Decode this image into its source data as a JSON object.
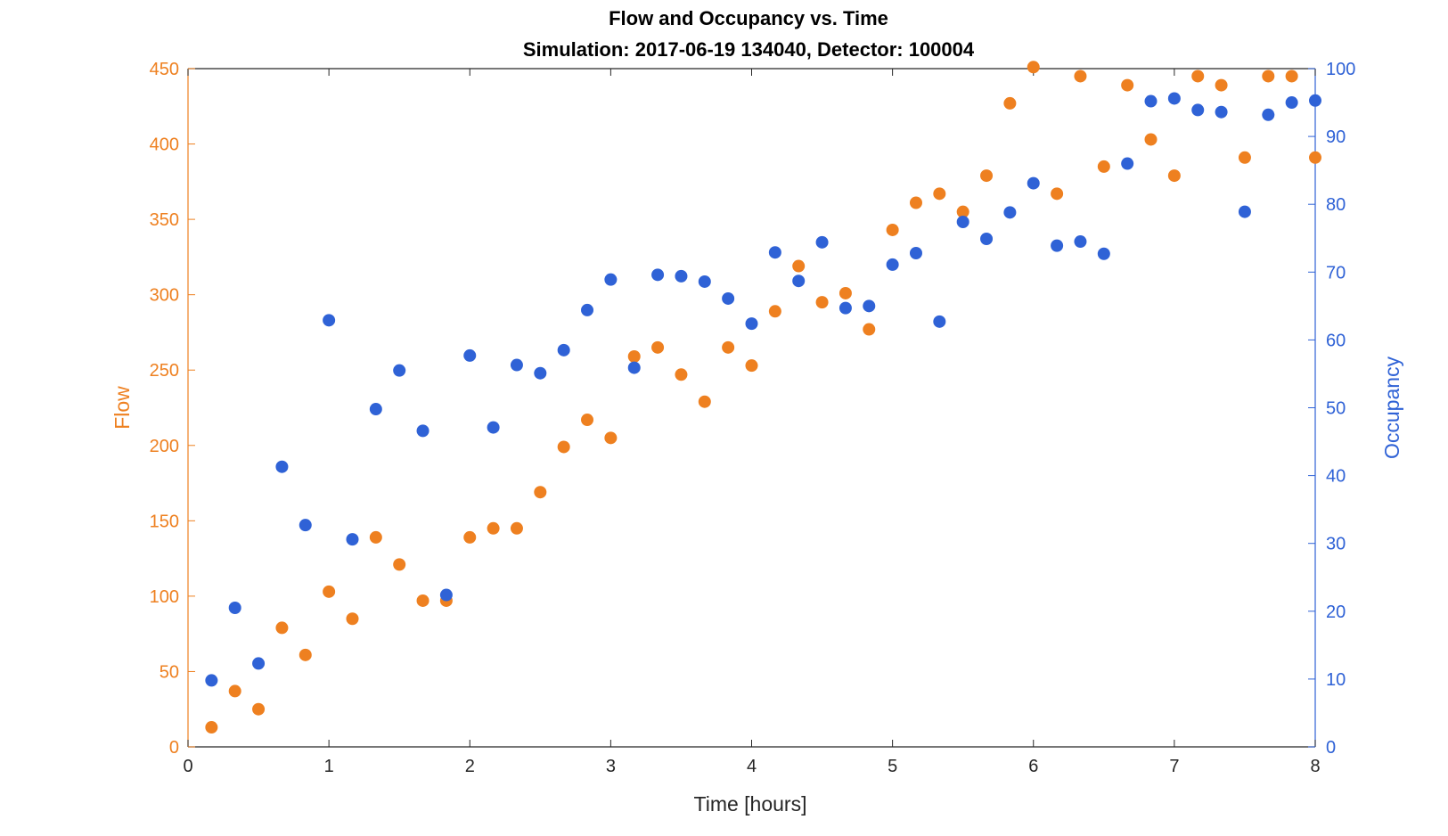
{
  "chart_data": {
    "type": "scatter",
    "title": "Flow and Occupancy vs. Time",
    "subtitle": "Simulation:  2017-06-19 134040,  Detector:  100004",
    "xlabel": "Time [hours]",
    "ylabel_left": "Flow",
    "ylabel_right": "Occupancy",
    "xlim": [
      0,
      8
    ],
    "ylim_left": [
      0,
      450
    ],
    "ylim_right": [
      0,
      100
    ],
    "x_ticks": [
      "0",
      "1",
      "2",
      "3",
      "4",
      "5",
      "6",
      "7",
      "8"
    ],
    "y_ticks_left": [
      "0",
      "50",
      "100",
      "150",
      "200",
      "250",
      "300",
      "350",
      "400",
      "450"
    ],
    "y_ticks_right": [
      "0",
      "10",
      "20",
      "30",
      "40",
      "50",
      "60",
      "70",
      "80",
      "90",
      "100"
    ],
    "grid": false,
    "colors": {
      "flow": "#ee8020",
      "occupancy": "#2f62d6",
      "axis": "#262626"
    },
    "series": [
      {
        "axis": "left",
        "x": [
          0.1667,
          0.3333,
          0.5,
          0.6667,
          0.8333,
          1.0,
          1.1667,
          1.3333,
          1.5,
          1.6667,
          1.8333,
          2.0,
          2.1667,
          2.3333,
          2.5,
          2.6667,
          2.8333,
          3.0,
          3.1667,
          3.3333,
          3.5,
          3.6667,
          3.8333,
          4.0,
          4.1667,
          4.3333,
          4.5,
          4.6667,
          4.8333,
          5.0,
          5.1667,
          5.3333,
          5.5,
          5.6667,
          5.8333,
          6.0,
          6.1667,
          6.3333,
          6.5,
          6.6667,
          6.8333,
          7.0,
          7.1667,
          7.3333,
          7.5,
          7.6667,
          7.8333,
          8.0
        ],
        "y": [
          13,
          37,
          25,
          79,
          61,
          103,
          85,
          139,
          121,
          97,
          97,
          139,
          145,
          145,
          169,
          199,
          217,
          205,
          259,
          265,
          247,
          229,
          265,
          253,
          289,
          319,
          295,
          301,
          277,
          343,
          361,
          367,
          355,
          379,
          427,
          451,
          367,
          445,
          385,
          439,
          403,
          379,
          445,
          439,
          391,
          445,
          445,
          391
        ]
      },
      {
        "axis": "right",
        "x": [
          0.1667,
          0.3333,
          0.5,
          0.6667,
          0.8333,
          1.0,
          1.1667,
          1.3333,
          1.5,
          1.6667,
          1.8333,
          2.0,
          2.1667,
          2.3333,
          2.5,
          2.6667,
          2.8333,
          3.0,
          3.1667,
          3.3333,
          3.5,
          3.6667,
          3.8333,
          4.0,
          4.1667,
          4.3333,
          4.5,
          4.6667,
          4.8333,
          5.0,
          5.1667,
          5.3333,
          5.5,
          5.6667,
          5.8333,
          6.0,
          6.1667,
          6.3333,
          6.5,
          6.6667,
          6.8333,
          7.0,
          7.1667,
          7.3333,
          7.5,
          7.6667,
          7.8333,
          8.0
        ],
        "y": [
          9.8,
          20.5,
          12.3,
          41.3,
          32.7,
          62.9,
          30.6,
          49.8,
          55.5,
          46.6,
          22.4,
          57.7,
          47.1,
          56.3,
          55.1,
          58.5,
          64.4,
          68.9,
          55.9,
          69.6,
          69.4,
          68.6,
          66.1,
          62.4,
          72.9,
          68.7,
          74.4,
          64.7,
          65.0,
          71.1,
          72.8,
          62.7,
          77.4,
          74.9,
          78.8,
          83.1,
          73.9,
          74.5,
          72.7,
          86.0,
          95.2,
          95.6,
          93.9,
          93.6,
          78.9,
          93.2,
          95.0,
          95.3
        ]
      }
    ]
  }
}
